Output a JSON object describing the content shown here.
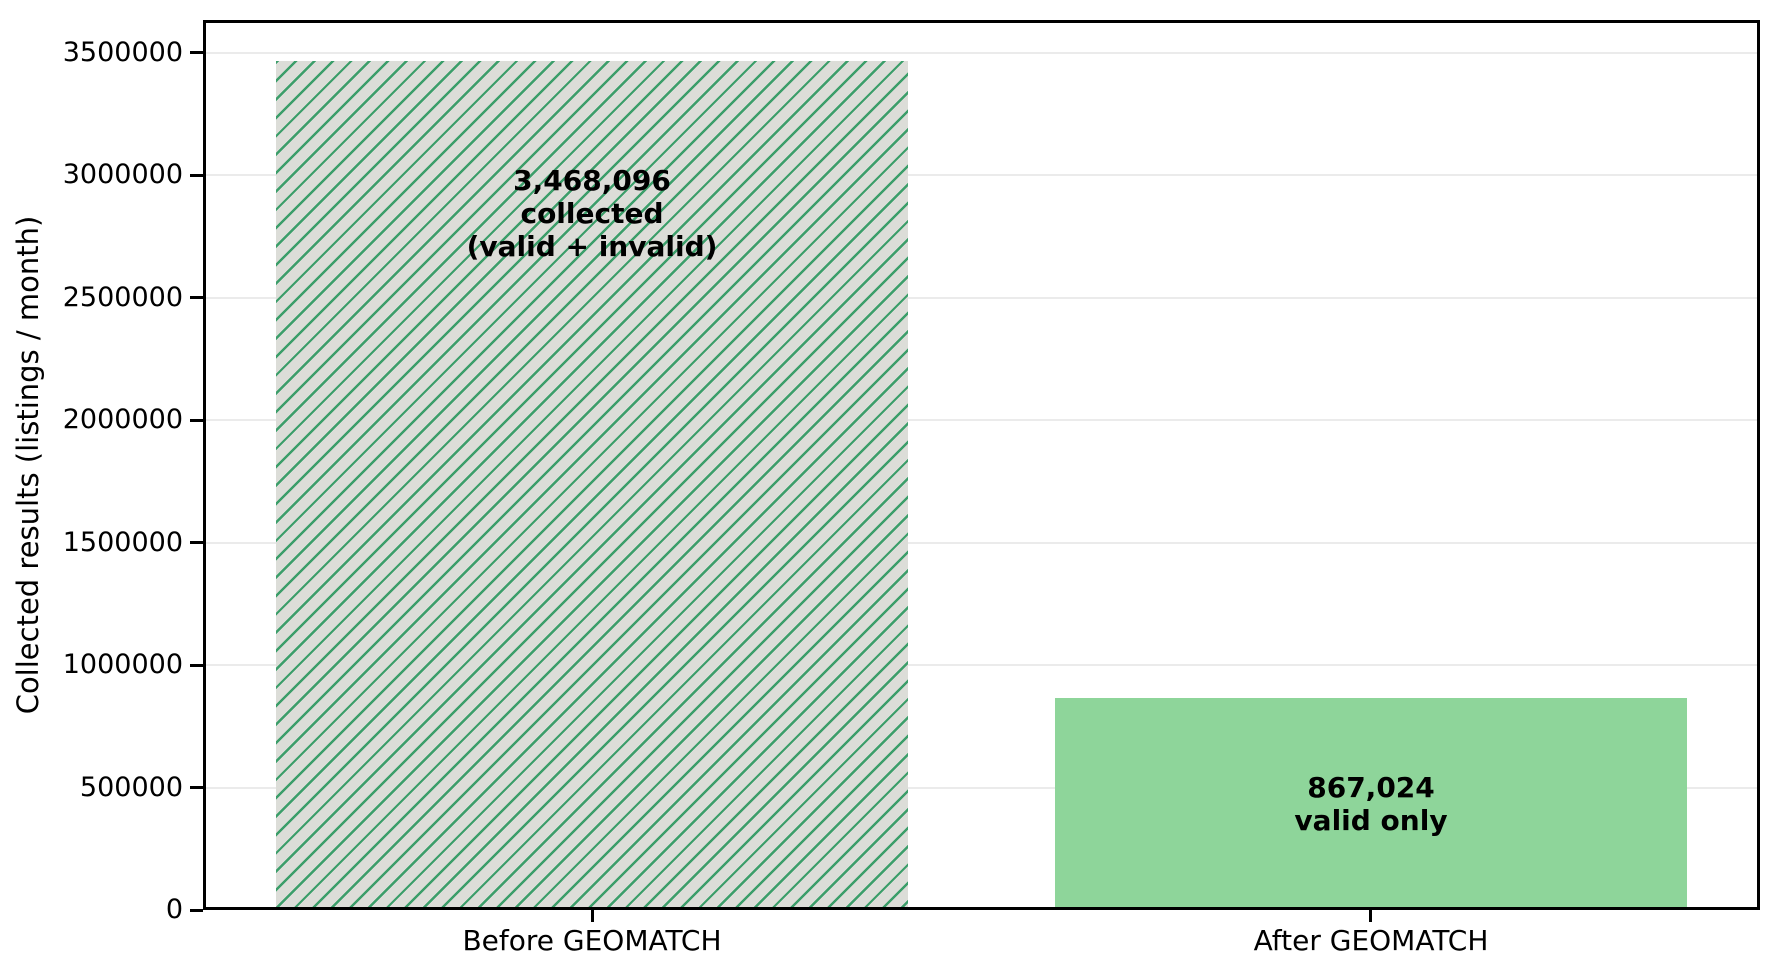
{
  "figure": {
    "background": "#ffffff"
  },
  "chart_data": {
    "type": "bar",
    "title": "",
    "xlabel": "",
    "ylabel": "Collected results (listings / month)",
    "categories": [
      "Before GEOMATCH",
      "After GEOMATCH"
    ],
    "series": [
      {
        "name": "Collected results",
        "values": [
          3468096,
          867024
        ]
      }
    ],
    "yticks": [
      0,
      500000,
      1000000,
      1500000,
      2000000,
      2500000,
      3000000,
      3500000
    ],
    "ylim": [
      0,
      3634000
    ],
    "grid": "horizontal-light",
    "legend": "none",
    "bars": [
      {
        "category": "Before GEOMATCH",
        "value": 3468096,
        "annotation_lines": [
          "3,468,096",
          "collected",
          "(valid + invalid)"
        ],
        "fill": "hatched",
        "face_color": "#dcddd8",
        "hatch_color": "#3c9e6a",
        "hatch_pattern": "diagonal-forward-slash",
        "annotation_center_frac_from_top": 0.18
      },
      {
        "category": "After GEOMATCH",
        "value": 867024,
        "annotation_lines": [
          "867,024",
          "valid only"
        ],
        "fill": "solid",
        "face_color": "#8ed59a",
        "hatch_color": null,
        "hatch_pattern": "none",
        "annotation_center_frac_from_top": 0.5
      }
    ],
    "colors": {
      "axis": "#000000",
      "gridline": "#ebebeb",
      "text": "#000000"
    }
  }
}
